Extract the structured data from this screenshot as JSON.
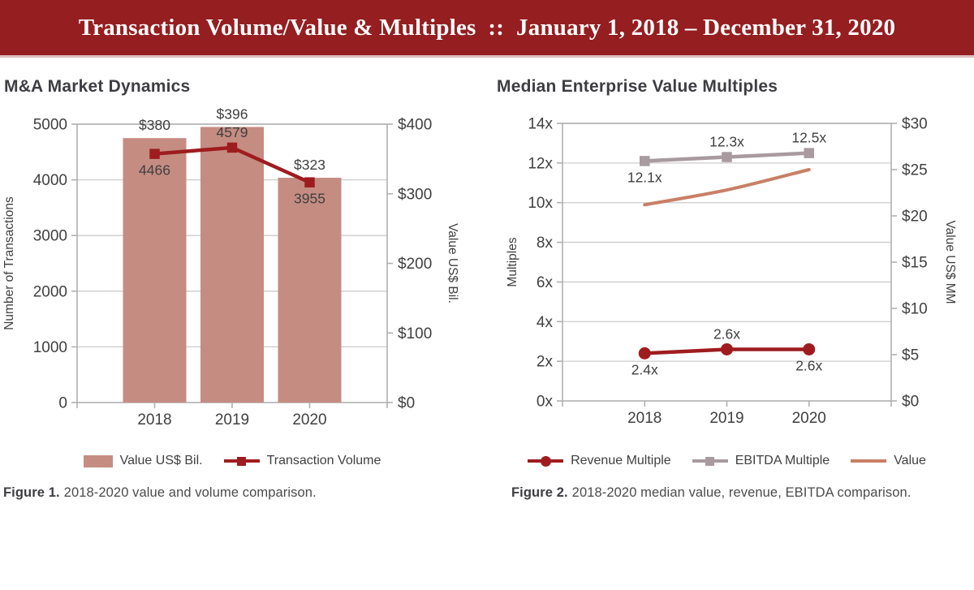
{
  "header": {
    "title": "Transaction Volume/Value & Multiples  ::  January 1, 2018 – December 31, 2020"
  },
  "colors": {
    "banner": "#941e20",
    "banner_border": "#dcbfbf",
    "bar": "#c58c82",
    "dark_red": "#9e1c1f",
    "mauve": "#a89a9e",
    "salmon": "#c87f66",
    "grid": "#cccccc",
    "axis": "#b0b0b0",
    "text": "#404040"
  },
  "chart_data": [
    {
      "type": "bar+line combo",
      "title": "M&A Market Dynamics",
      "categories": [
        "2018",
        "2019",
        "2020"
      ],
      "grid": true,
      "axes": {
        "left": {
          "title": "Number of Transactions",
          "min": 0,
          "max": 5000,
          "tick_values": [
            0,
            1000,
            2000,
            3000,
            4000,
            5000
          ],
          "tick_labels": [
            "0",
            "1000",
            "2000",
            "3000",
            "4000",
            "5000"
          ]
        },
        "right": {
          "title": "Value US$ Bil.",
          "min": 0,
          "max": 400,
          "tick_values": [
            0,
            100,
            200,
            300,
            400
          ],
          "tick_labels": [
            "$0",
            "$100",
            "$200",
            "$300",
            "$400"
          ]
        }
      },
      "series": [
        {
          "name": "Value US$ Bil.",
          "kind": "bar",
          "axis": "right",
          "color": "bar",
          "values": [
            380,
            396,
            323
          ],
          "labels": [
            "$380",
            "$396",
            "$323"
          ],
          "label_side": [
            "above",
            "above",
            "above"
          ]
        },
        {
          "name": "Transaction Volume",
          "kind": "line",
          "axis": "left",
          "color": "dark_red",
          "marker": "square",
          "values": [
            4466,
            4579,
            3955
          ],
          "labels": [
            "4466",
            "4579",
            "3955"
          ],
          "label_side": [
            "below",
            "above",
            "below"
          ]
        }
      ],
      "legend": [
        {
          "swatch": "rect",
          "color": "bar",
          "label": "Value US$ Bil."
        },
        {
          "swatch": "line-square",
          "color": "dark_red",
          "label": "Transaction Volume"
        }
      ],
      "caption_label": "Figure 1.",
      "caption_text": "2018-2020 value and volume comparison."
    },
    {
      "type": "line",
      "title": "Median Enterprise Value Multiples",
      "categories": [
        "2018",
        "2019",
        "2020"
      ],
      "grid": true,
      "axes": {
        "left": {
          "title": "Multiples",
          "min": 0,
          "max": 14,
          "tick_values": [
            0,
            2,
            4,
            6,
            8,
            10,
            12,
            14
          ],
          "tick_labels": [
            "0x",
            "2x",
            "4x",
            "6x",
            "8x",
            "10x",
            "12x",
            "14x"
          ]
        },
        "right": {
          "title": "Value US$ MM",
          "min": 0,
          "max": 30,
          "tick_values": [
            0,
            5,
            10,
            15,
            20,
            25,
            30
          ],
          "tick_labels": [
            "$0",
            "$5",
            "$10",
            "$15",
            "$20",
            "$25",
            "$30"
          ]
        }
      },
      "series": [
        {
          "name": "Value",
          "kind": "line",
          "axis": "right",
          "color": "salmon",
          "smooth": true,
          "width": 4,
          "values": [
            21.2,
            22.8,
            25.0
          ]
        },
        {
          "name": "EBITDA Multiple",
          "kind": "line",
          "axis": "left",
          "color": "mauve",
          "marker": "square",
          "values": [
            12.1,
            12.3,
            12.5
          ],
          "labels": [
            "12.1x",
            "12.3x",
            "12.5x"
          ],
          "label_side": [
            "below",
            "above",
            "above"
          ]
        },
        {
          "name": "Revenue Multiple",
          "kind": "line",
          "axis": "left",
          "color": "dark_red",
          "marker": "circle",
          "values": [
            2.4,
            2.6,
            2.6
          ],
          "labels": [
            "2.4x",
            "2.6x",
            "2.6x"
          ],
          "label_side": [
            "below",
            "above",
            "below"
          ]
        }
      ],
      "legend": [
        {
          "swatch": "line-circle",
          "color": "dark_red",
          "label": "Revenue Multiple"
        },
        {
          "swatch": "line-square",
          "color": "mauve",
          "label": "EBITDA Multiple"
        },
        {
          "swatch": "line",
          "color": "salmon",
          "label": "Value"
        }
      ],
      "caption_label": "Figure 2.",
      "caption_text": "2018-2020 median value, revenue, EBITDA comparison."
    }
  ]
}
